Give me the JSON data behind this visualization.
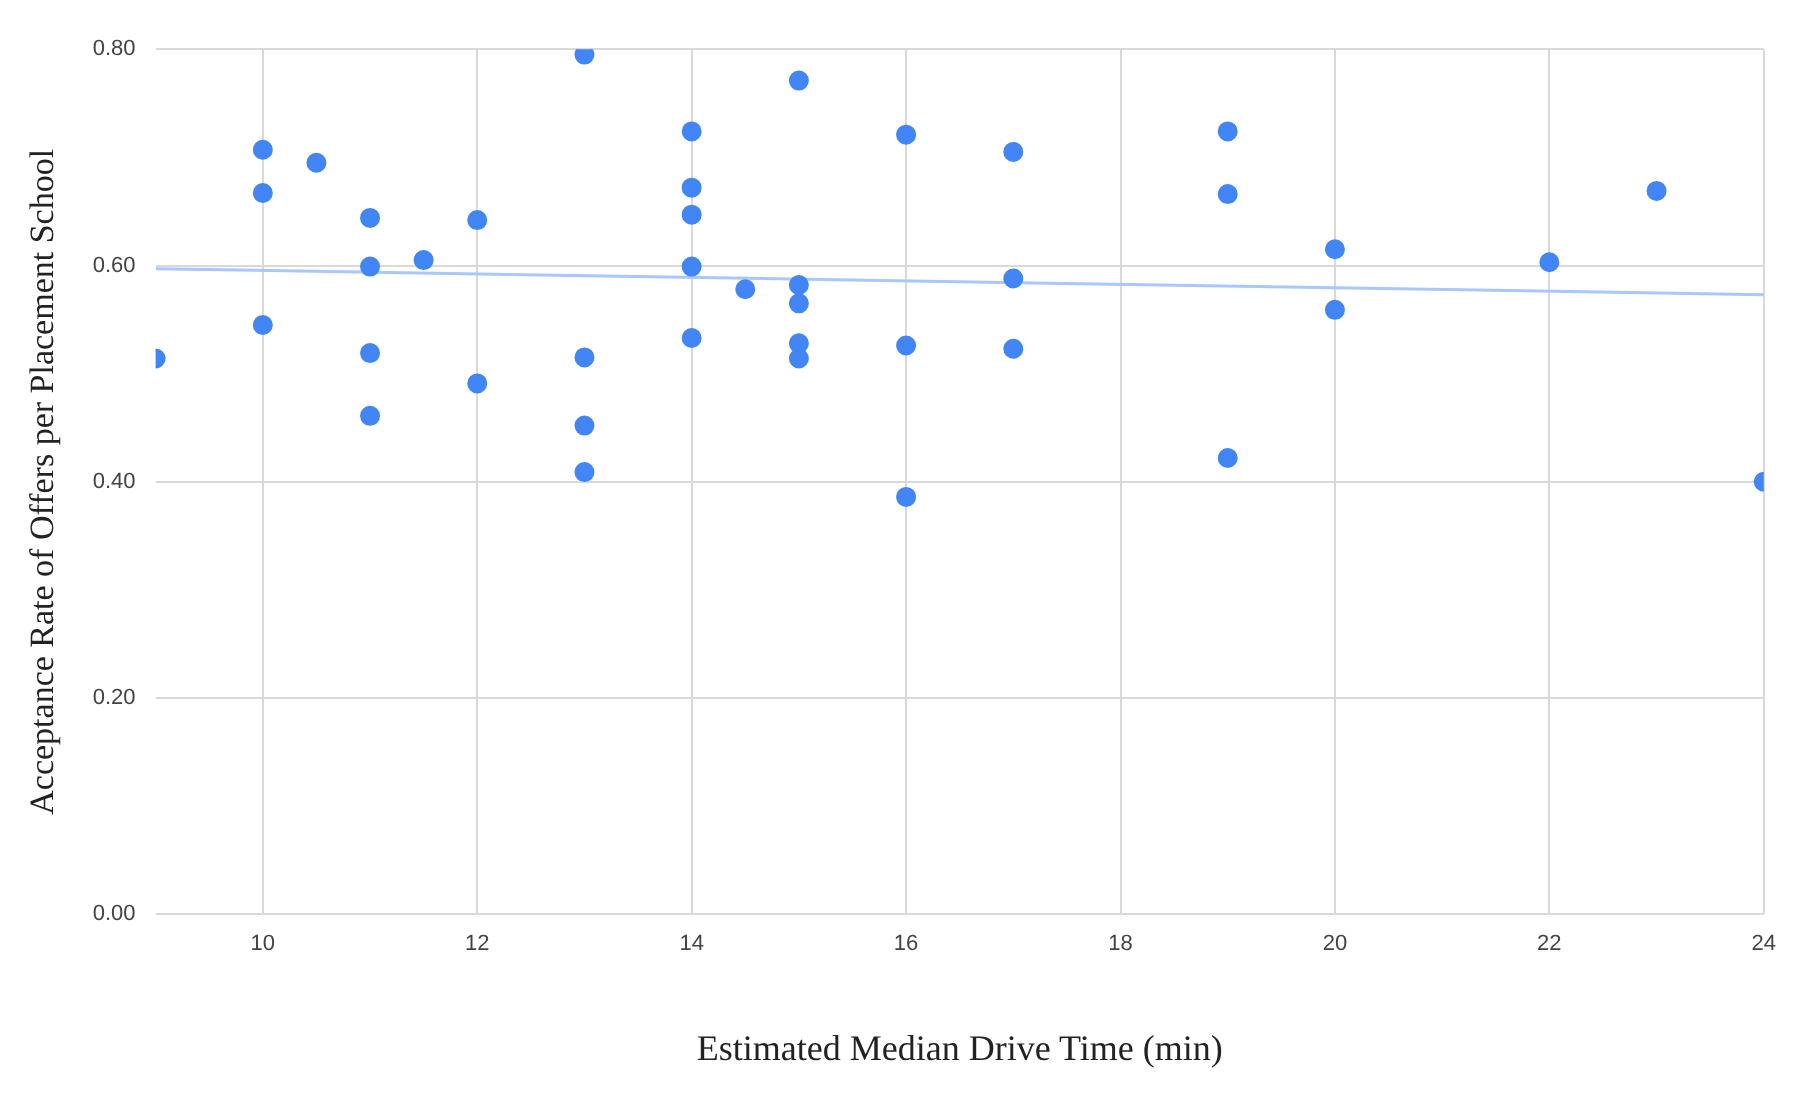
{
  "chart_data": {
    "type": "scatter",
    "xlabel": "Estimated Median Drive Time (min)",
    "ylabel": "Acceptance Rate of Offers per Placement School",
    "xlim": [
      9,
      24
    ],
    "xticks": [
      10,
      12,
      14,
      16,
      18,
      20,
      22,
      24
    ],
    "ylim": [
      0,
      0.8
    ],
    "yticks": [
      {
        "value": 0,
        "label": "0.00"
      },
      {
        "value": 0.2,
        "label": "0.20"
      },
      {
        "value": 0.4,
        "label": "0.40"
      },
      {
        "value": 0.6,
        "label": "0.60"
      },
      {
        "value": 0.8,
        "label": "0.80"
      }
    ],
    "grid": true,
    "legend": false,
    "series": [
      {
        "marker": "circle",
        "color": "#4285f4",
        "x": [
          9,
          10,
          10,
          10,
          10.5,
          11,
          11,
          11,
          11,
          11.5,
          12,
          12,
          13,
          13,
          13,
          13,
          14,
          14,
          14,
          14,
          14,
          14.5,
          15,
          15,
          15,
          15,
          15,
          16,
          16,
          16,
          17,
          17,
          17,
          19,
          19,
          19,
          20,
          20,
          22,
          23,
          24
        ],
        "values": [
          0.514,
          0.707,
          0.667,
          0.545,
          0.695,
          0.644,
          0.599,
          0.519,
          0.461,
          0.605,
          0.642,
          0.491,
          0.795,
          0.515,
          0.452,
          0.409,
          0.724,
          0.672,
          0.647,
          0.599,
          0.533,
          0.578,
          0.771,
          0.582,
          0.565,
          0.528,
          0.514,
          0.721,
          0.526,
          0.386,
          0.705,
          0.588,
          0.523,
          0.724,
          0.666,
          0.422,
          0.615,
          0.559,
          0.603,
          0.669,
          0.4
        ]
      },
      {
        "type": "line",
        "color": "#a8c7fa",
        "x": [
          9,
          24
        ],
        "values": [
          0.597,
          0.573
        ]
      }
    ]
  }
}
